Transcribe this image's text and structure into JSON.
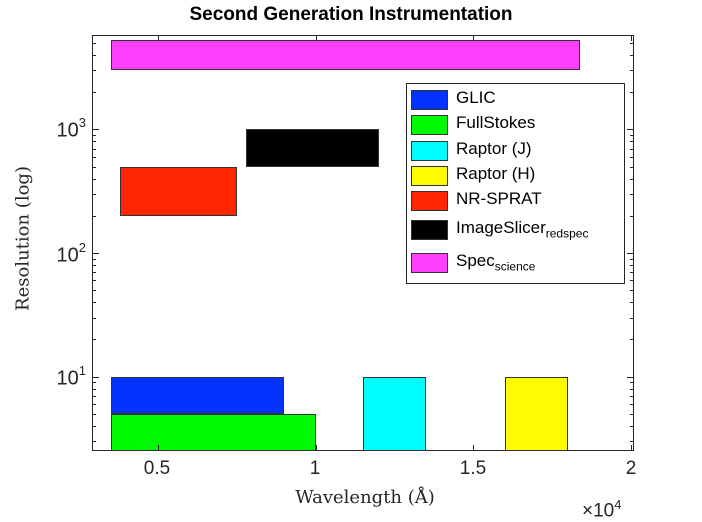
{
  "chart_data": {
    "type": "bar",
    "subtype": "floating-rectangles",
    "title": "Second Generation Instrumentation",
    "xlabel": "Wavelength (Å)",
    "x_multiplier": "×10^4",
    "ylabel": "Resolution (log)",
    "yscale": "log",
    "xlim": [
      0.29,
      2.01
    ],
    "ylim": [
      2.5,
      5800
    ],
    "x_ticks": [
      0.5,
      1,
      1.5,
      2
    ],
    "x_tick_labels": [
      "0.5",
      "1",
      "1.5",
      "2"
    ],
    "y_ticks": [
      10,
      100,
      1000
    ],
    "y_tick_labels": [
      "10",
      "10",
      "10"
    ],
    "y_tick_exponents": [
      "1",
      "2",
      "3"
    ],
    "legend_position": "upper right (inside)",
    "grid": false,
    "series": [
      {
        "name": "GLIC",
        "color": "#0433ff",
        "x_range": [
          0.35,
          0.9
        ],
        "y_range": [
          5,
          10
        ]
      },
      {
        "name": "FullStokes",
        "color": "#00f900",
        "x_range": [
          0.35,
          1.0
        ],
        "y_range": [
          2.5,
          5
        ]
      },
      {
        "name": "Raptor (J)",
        "color": "#00fdff",
        "x_range": [
          1.15,
          1.35
        ],
        "y_range": [
          2.5,
          10
        ]
      },
      {
        "name": "Raptor (H)",
        "color": "#fffb00",
        "x_range": [
          1.6,
          1.8
        ],
        "y_range": [
          2.5,
          10
        ]
      },
      {
        "name": "NR-SPRAT",
        "color": "#ff2600",
        "x_range": [
          0.38,
          0.75
        ],
        "y_range": [
          200,
          500
        ]
      },
      {
        "name": "ImageSlicer_redspec",
        "color": "#000000",
        "x_range": [
          0.78,
          1.2
        ],
        "y_range": [
          500,
          1000
        ]
      },
      {
        "name": "Spec_science",
        "color": "#ff40ff",
        "x_range": [
          0.35,
          1.84
        ],
        "y_range": [
          3000,
          5300
        ]
      }
    ]
  },
  "legend": {
    "items": [
      {
        "label": "GLIC",
        "sub": ""
      },
      {
        "label": "FullStokes",
        "sub": ""
      },
      {
        "label": "Raptor (J)",
        "sub": ""
      },
      {
        "label": "Raptor (H)",
        "sub": ""
      },
      {
        "label": "NR-SPRAT",
        "sub": ""
      },
      {
        "label": "ImageSlicer",
        "sub": "redspec"
      },
      {
        "label": "Spec",
        "sub": "science"
      }
    ]
  },
  "axis": {
    "y_base": "10",
    "x_mult_base": "×10",
    "x_mult_exp": "4"
  }
}
